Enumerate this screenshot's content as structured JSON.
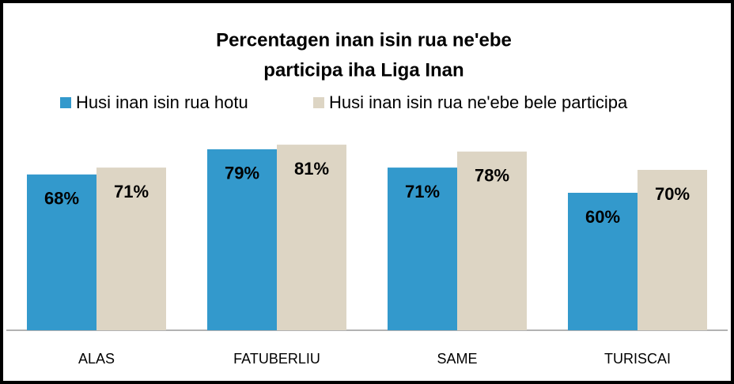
{
  "chart_data": {
    "type": "bar",
    "title": [
      "Percentagen inan isin rua ne'ebe",
      "participa iha Liga Inan"
    ],
    "categories": [
      "ALAS",
      "FATUBERLIU",
      "SAME",
      "TURISCAI"
    ],
    "series": [
      {
        "name": "Husi inan isin rua hotu",
        "color": "#3399cc",
        "values": [
          68,
          79,
          71,
          60
        ],
        "value_labels": [
          "68%",
          "79%",
          "71%",
          "60%"
        ]
      },
      {
        "name": "Husi inan isin rua ne'ebe bele participa",
        "color": "#ddd5c4",
        "values": [
          71,
          81,
          78,
          70
        ],
        "value_labels": [
          "71%",
          "81%",
          "78%",
          "70%"
        ]
      }
    ],
    "legend": "top"
  }
}
